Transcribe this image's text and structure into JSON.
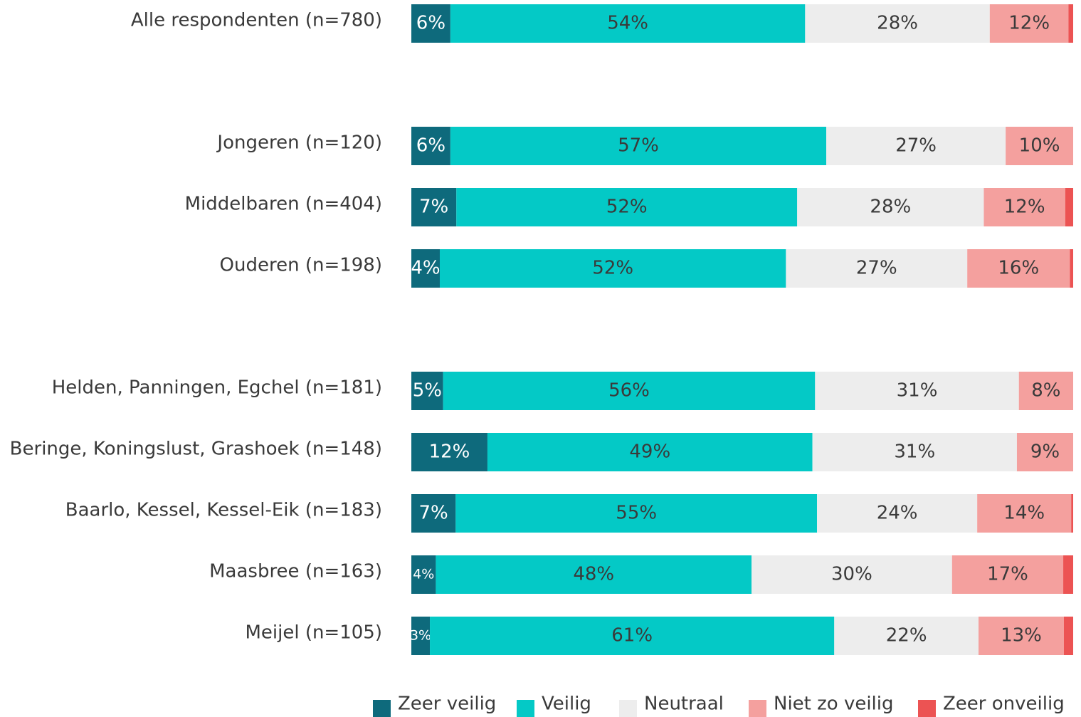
{
  "chart_data": {
    "type": "stacked-bar-horizontal",
    "categories": [
      "Alle respondenten (n=780)",
      null,
      "Jongeren (n=120)",
      "Middelbaren (n=404)",
      "Ouderen (n=198)",
      null,
      "Helden, Panningen, Egchel (n=181)",
      "Beringe, Koningslust, Grashoek (n=148)",
      "Baarlo, Kessel, Kessel-Eik (n=183)",
      "Maasbree (n=163)",
      "Meijel (n=105)"
    ],
    "xlim": [
      0,
      100
    ],
    "legend": "bottom",
    "series": [
      {
        "name": "Zeer veilig",
        "color": "#0e6a7c",
        "values": [
          5.9,
          null,
          5.9,
          6.8,
          4.3,
          null,
          4.8,
          11.5,
          6.7,
          3.7,
          2.8
        ],
        "value_labels": [
          "6%",
          null,
          "6%",
          "7%",
          "4%",
          null,
          "5%",
          "12%",
          "7%",
          "4%",
          "3%"
        ]
      },
      {
        "name": "Veilig",
        "color": "#04c9c6",
        "values": [
          53.6,
          null,
          56.8,
          51.5,
          52.3,
          null,
          56.2,
          49.1,
          54.6,
          47.7,
          61.1
        ],
        "value_labels": [
          "54%",
          null,
          "57%",
          "52%",
          "52%",
          null,
          "56%",
          "49%",
          "55%",
          "48%",
          "61%"
        ]
      },
      {
        "name": "Neutraal",
        "color": "#ededed",
        "values": [
          27.9,
          null,
          27.1,
          28.2,
          27.4,
          null,
          30.8,
          30.9,
          24.2,
          30.3,
          21.8
        ],
        "value_labels": [
          "28%",
          null,
          "27%",
          "28%",
          "27%",
          null,
          "31%",
          "31%",
          "24%",
          "30%",
          "22%"
        ]
      },
      {
        "name": "Niet zo veilig",
        "color": "#f4a09e",
        "values": [
          11.9,
          null,
          10.2,
          12.3,
          15.5,
          null,
          8.2,
          8.5,
          14.2,
          16.8,
          12.9
        ],
        "value_labels": [
          "12%",
          null,
          "10%",
          "12%",
          "16%",
          null,
          "8%",
          "9%",
          "14%",
          "17%",
          "13%"
        ]
      },
      {
        "name": "Zeer onveilig",
        "color": "#ec5353",
        "values": [
          0.7,
          null,
          0,
          1.2,
          0.5,
          null,
          0,
          0,
          0.3,
          1.5,
          1.4
        ]
      }
    ]
  }
}
